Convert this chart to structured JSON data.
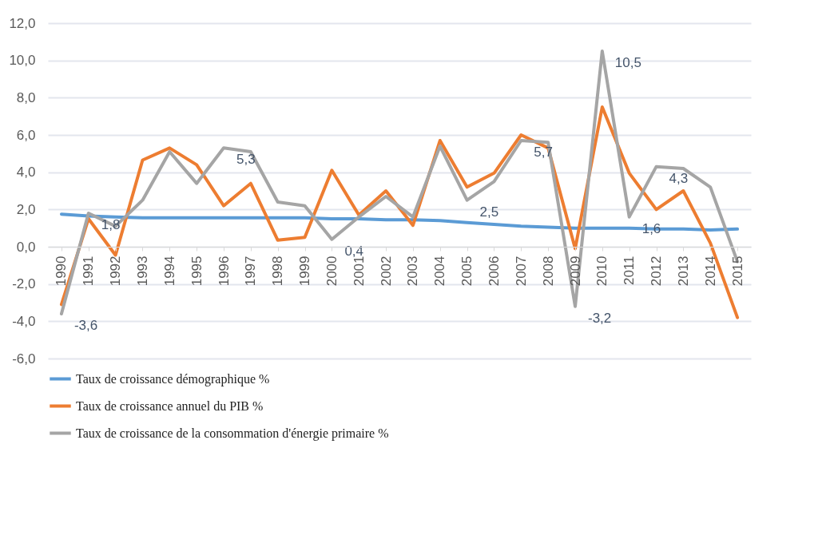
{
  "chart_data": {
    "type": "line",
    "categories": [
      "1990",
      "1991",
      "1992",
      "1993",
      "1994",
      "1995",
      "1996",
      "1997",
      "1998",
      "1999",
      "2000",
      "2001",
      "2002",
      "2003",
      "2004",
      "2005",
      "2006",
      "2007",
      "2008",
      "2009",
      "2010",
      "2011",
      "2012",
      "2013",
      "2014",
      "2015"
    ],
    "series": [
      {
        "name": "Taux de croissance démographique %",
        "color": "#5b9bd5",
        "values": [
          1.75,
          1.65,
          1.6,
          1.55,
          1.55,
          1.55,
          1.55,
          1.55,
          1.55,
          1.55,
          1.5,
          1.5,
          1.45,
          1.45,
          1.4,
          1.3,
          1.2,
          1.1,
          1.05,
          1.0,
          1.0,
          1.0,
          0.95,
          0.95,
          0.9,
          0.95
        ]
      },
      {
        "name": "Taux de croissance annuel du PIB %",
        "color": "#ed7d31",
        "values": [
          -3.1,
          1.5,
          -0.45,
          4.65,
          5.3,
          4.4,
          2.2,
          3.4,
          0.35,
          0.5,
          4.1,
          1.7,
          3.0,
          1.15,
          5.7,
          3.2,
          3.95,
          6.0,
          5.3,
          -0.1,
          7.5,
          3.95,
          2.0,
          3.0,
          0.2,
          -3.8
        ]
      },
      {
        "name": "Taux de croissance de la consommation d'énergie primaire %",
        "color": "#a5a5a5",
        "values": [
          -3.6,
          1.8,
          1.1,
          2.5,
          5.1,
          3.4,
          5.3,
          5.1,
          2.4,
          2.2,
          0.4,
          1.6,
          2.7,
          1.6,
          5.4,
          2.5,
          3.5,
          5.7,
          5.6,
          -3.2,
          10.5,
          1.6,
          4.3,
          4.2,
          3.2,
          -0.8
        ],
        "value_labels": [
          "-3,6",
          "1,8",
          null,
          null,
          null,
          null,
          "5,3",
          null,
          null,
          null,
          "0,4",
          null,
          null,
          null,
          null,
          "2,5",
          null,
          "5,7",
          null,
          "-3,2",
          "10,5",
          "1,6",
          "4,3",
          null,
          null,
          null
        ]
      }
    ],
    "ylim": [
      -6,
      12
    ],
    "yticks": [
      {
        "value": -6,
        "label": "-6,0"
      },
      {
        "value": -4,
        "label": "-4,0"
      },
      {
        "value": -2,
        "label": "-2,0"
      },
      {
        "value": 0,
        "label": "0,0"
      },
      {
        "value": 2,
        "label": "2,0"
      },
      {
        "value": 4,
        "label": "4,0"
      },
      {
        "value": 6,
        "label": "6,0"
      },
      {
        "value": 8,
        "label": "8,0"
      },
      {
        "value": 10,
        "label": "10,0"
      },
      {
        "value": 12,
        "label": "12,0"
      }
    ],
    "grid": "y",
    "legend": "bottom",
    "marker": "none",
    "line_style": "solid"
  }
}
